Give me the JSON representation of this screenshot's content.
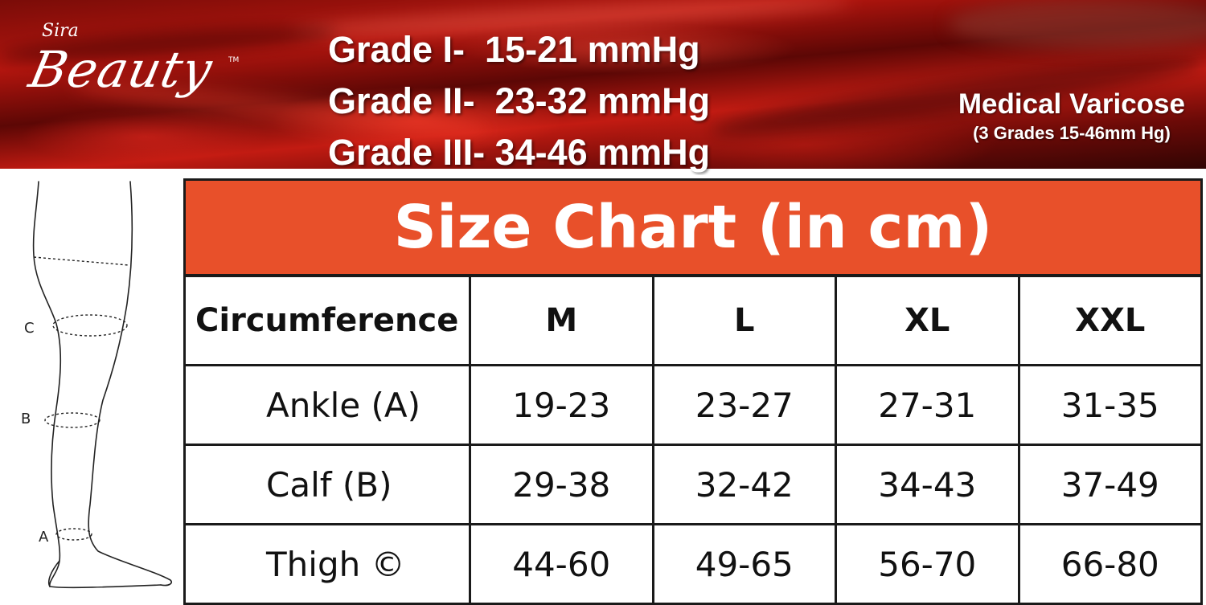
{
  "brand": {
    "small": "Sira",
    "main": "Beauty",
    "tm": "TM"
  },
  "grades": [
    "Grade I-  15-21 mmHg",
    "Grade II-  23-32 mmHg",
    "Grade III- 34-46 mmHg"
  ],
  "product": {
    "name": "Medical Varicose",
    "subtitle": "(3 Grades 15-46mm Hg)"
  },
  "diagram": {
    "labels": {
      "c": "C",
      "b": "B",
      "a": "A"
    }
  },
  "size_chart": {
    "title": "Size Chart (in cm)",
    "header": [
      "Circumference",
      "M",
      "L",
      "XL",
      "XXL"
    ],
    "rows": [
      {
        "label": "Ankle (A)",
        "values": [
          "19-23",
          "23-27",
          "27-31",
          "31-35"
        ]
      },
      {
        "label": "Calf (B)",
        "values": [
          "29-38",
          "32-42",
          "34-43",
          "37-49"
        ]
      },
      {
        "label": "Thigh ©",
        "values": [
          "44-60",
          "49-65",
          "56-70",
          "66-80"
        ]
      }
    ]
  },
  "colors": {
    "banner_red": "#b3150e",
    "title_orange": "#e8502a",
    "border": "#1a1a1a"
  }
}
